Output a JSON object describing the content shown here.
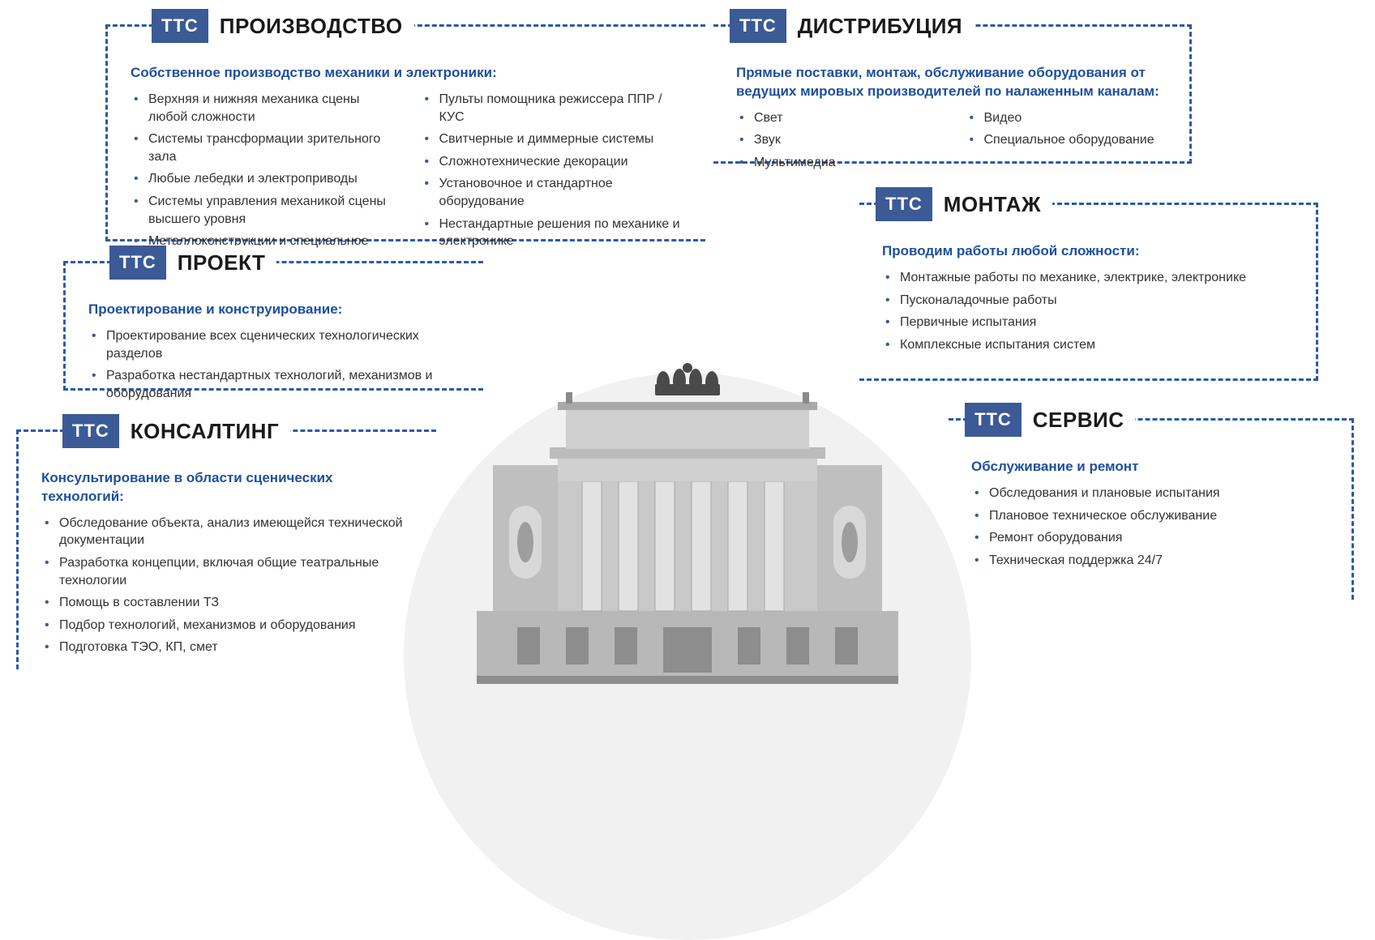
{
  "colors": {
    "badge_bg": "#3b5a96",
    "badge_text": "#ffffff",
    "border": "#2a5aa8",
    "title_text": "#1a1a1a",
    "subtitle_text": "#1e4f9e",
    "body_text": "#333333",
    "bullet": "#3b5a96",
    "circle_bg": "#f1f1f2",
    "page_bg": "#ffffff"
  },
  "typography": {
    "title_fontsize": 26,
    "title_weight": 900,
    "subtitle_fontsize": 17,
    "subtitle_weight": 700,
    "body_fontsize": 16,
    "badge_fontsize": 22,
    "font_family": "Arial"
  },
  "border": {
    "style": "dashed",
    "width": 3
  },
  "badge_label": "ТТС",
  "cards": {
    "production": {
      "title": "ПРОИЗВОДСТВО",
      "subtitle": "Собственное производство механики и электроники:",
      "items_col1": [
        "Верхняя и нижняя механика сцены любой сложности",
        "Системы трансформации зрительного зала",
        "Любые лебедки и электроприводы",
        "Системы управления механикой сцены высшего уровня",
        "Металлоконструкции и специальное оборудование"
      ],
      "items_col2": [
        "Пульты помощника режиссера  ППР / КУС",
        "Свитчерные и диммерные системы",
        "Сложнотехнические декорации",
        "Установочное и стандартное оборудование",
        "Нестандартные решения по механике и электронике"
      ],
      "open_side": "right"
    },
    "project": {
      "title": "ПРОЕКТ",
      "subtitle": "Проектирование и конструирование:",
      "items": [
        "Проектирование всех сценических технологических разделов",
        "Разработка нестандартных технологий, механизмов и оборудования"
      ],
      "open_side": "right"
    },
    "consulting": {
      "title": "КОНСАЛТИНГ",
      "subtitle": "Консультирование в области сценических технологий:",
      "items": [
        "Обследование объекта, анализ имеющейся технической документации",
        "Разработка концепции, включая общие театральные технологии",
        "Помощь в составлении ТЗ",
        "Подбор технологий, механизмов и оборудования",
        "Подготовка ТЭО, КП, смет"
      ],
      "open_side": "right-bottom"
    },
    "distribution": {
      "title": "ДИСТРИБУЦИЯ",
      "subtitle": "Прямые поставки, монтаж, обслуживание оборудования от ведущих мировых производителей по налаженным каналам:",
      "items_col1": [
        "Свет",
        "Звук",
        "Мультимедиа"
      ],
      "items_col2": [
        "Видео",
        "Специальное оборудование"
      ],
      "open_side": "left"
    },
    "montage": {
      "title": "МОНТАЖ",
      "subtitle": "Проводим работы любой сложности:",
      "items": [
        "Монтажные работы по механике, электрике, электронике",
        "Пусконаладочные работы",
        "Первичные испытания",
        "Комплексные испытания систем"
      ],
      "open_side": "left"
    },
    "service": {
      "title": "СЕРВИС",
      "subtitle": "Обслуживание и ремонт",
      "items": [
        "Обследования и плановые испытания",
        "Плановое техническое обслуживание",
        "Ремонт оборудования",
        "Техническая поддержка 24/7"
      ],
      "open_side": "left-bottom"
    }
  }
}
